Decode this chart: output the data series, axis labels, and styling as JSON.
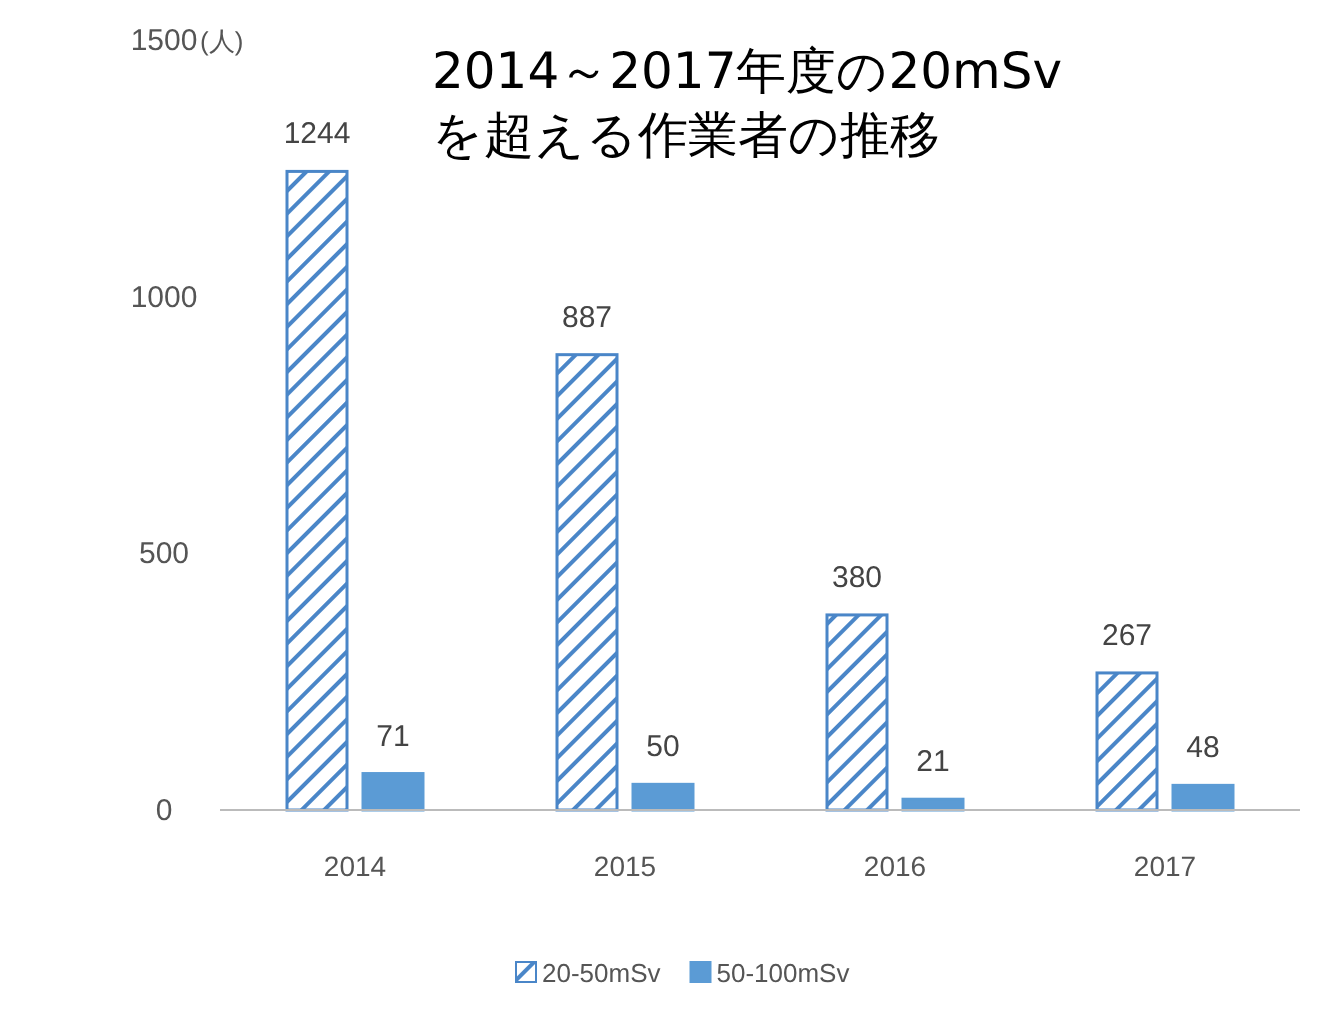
{
  "chart_data": {
    "type": "bar",
    "title": "2014～2017年度の20mSvを超える作業者の推移",
    "ylabel": "(人)",
    "categories": [
      "2014",
      "2015",
      "2016",
      "2017"
    ],
    "series": [
      {
        "name": "20-50mSv",
        "color": "#4a86c8",
        "values": [
          1244,
          887,
          380,
          267
        ]
      },
      {
        "name": "50-100mSv",
        "color": "#5b9bd5",
        "values": [
          71,
          50,
          21,
          48
        ]
      }
    ],
    "ylim": [
      0,
      1500
    ],
    "yticks": [
      0,
      500,
      1000,
      1500
    ],
    "data_labels": true,
    "legend": "bottom"
  }
}
